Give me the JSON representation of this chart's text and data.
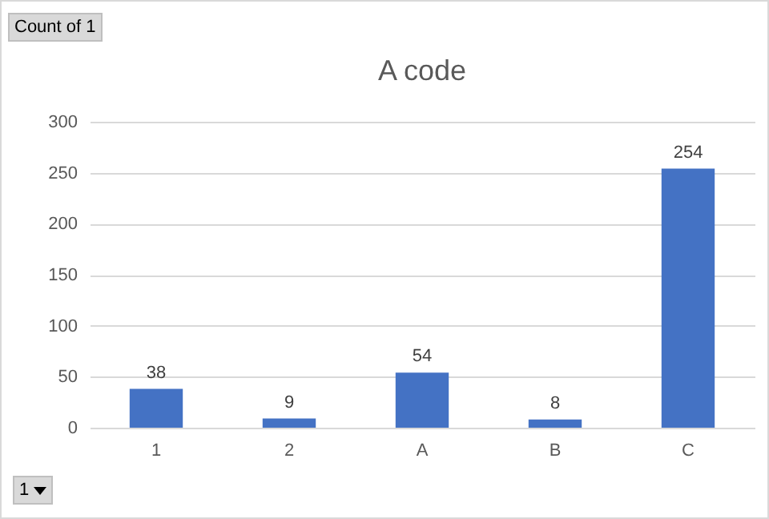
{
  "chart_data": {
    "type": "bar",
    "title": "A code",
    "categories": [
      "1",
      "2",
      "A",
      "B",
      "C"
    ],
    "values": [
      38,
      9,
      54,
      8,
      254
    ],
    "color": "#4472c4",
    "ylim": [
      0,
      300
    ],
    "yticks": [
      0,
      50,
      100,
      150,
      200,
      250,
      300
    ],
    "grid": "y",
    "data_labels": true,
    "annotations": [
      "Count of 1",
      "1"
    ]
  }
}
